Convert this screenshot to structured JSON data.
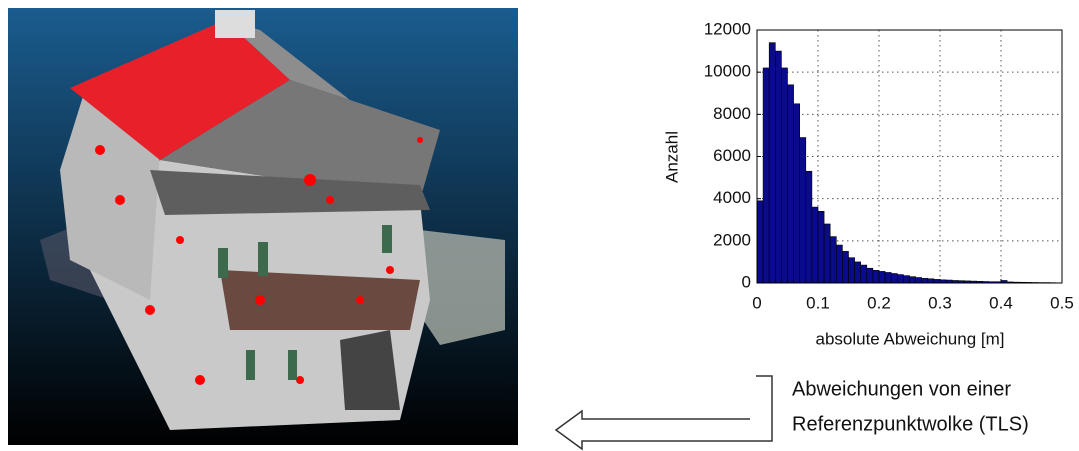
{
  "chart_data": {
    "type": "histogram",
    "xlabel": "absolute Abweichung [m]",
    "ylabel": "Anzahl",
    "bins": [
      0,
      0.01,
      0.02,
      0.03,
      0.04,
      0.05,
      0.06,
      0.07,
      0.08,
      0.09,
      0.1,
      0.11,
      0.12,
      0.13,
      0.14,
      0.15,
      0.16,
      0.17,
      0.18,
      0.19,
      0.2,
      0.21,
      0.22,
      0.23,
      0.24,
      0.25,
      0.26,
      0.27,
      0.28,
      0.29,
      0.3,
      0.31,
      0.32,
      0.33,
      0.34,
      0.35,
      0.36,
      0.37,
      0.38,
      0.39,
      0.4,
      0.41,
      0.42,
      0.43,
      0.44,
      0.45,
      0.46,
      0.47,
      0.48,
      0.49,
      0.5
    ],
    "counts": [
      3900,
      10200,
      11400,
      11000,
      10200,
      9400,
      8500,
      6900,
      5300,
      3600,
      3400,
      2800,
      2200,
      1800,
      1500,
      1200,
      1000,
      850,
      700,
      600,
      550,
      500,
      450,
      400,
      350,
      300,
      260,
      220,
      200,
      170,
      150,
      140,
      120,
      110,
      100,
      90,
      80,
      70,
      60,
      60,
      120,
      50,
      40,
      35,
      30,
      25,
      20,
      20,
      15,
      10
    ],
    "color": "#0a0a8c",
    "xlim": [
      0,
      0.5
    ],
    "ylim": [
      0,
      12000
    ],
    "xticks": [
      0,
      0.1,
      0.2,
      0.3,
      0.4,
      0.5
    ],
    "yticks": [
      0,
      2000,
      4000,
      6000,
      8000,
      10000,
      12000
    ],
    "grid": true,
    "annotation": [
      "Abweichungen von einer",
      "Referenzpunktwolke  (TLS)"
    ]
  }
}
